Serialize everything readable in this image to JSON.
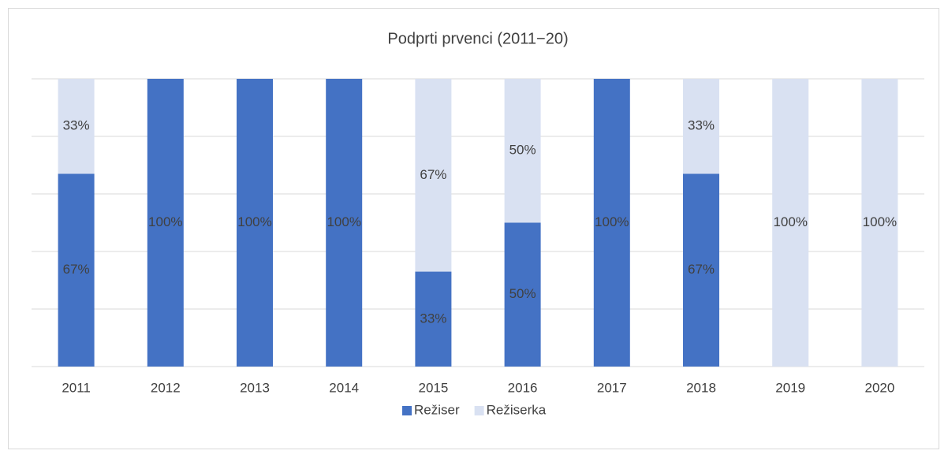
{
  "chart_data": {
    "type": "stacked_bar",
    "title": "Podprti prvenci (2011−20)",
    "categories": [
      "2011",
      "2012",
      "2013",
      "2014",
      "2015",
      "2016",
      "2017",
      "2018",
      "2019",
      "2020"
    ],
    "series": [
      {
        "name": "Režiser",
        "color": "#4472c4",
        "values": [
          67,
          100,
          100,
          100,
          33,
          50,
          100,
          67,
          0,
          0
        ],
        "value_labels": [
          "67%",
          "100%",
          "100%",
          "100%",
          "33%",
          "50%",
          "100%",
          "67%",
          null,
          null
        ]
      },
      {
        "name": "Režiserka",
        "color": "#d9e1f2",
        "values": [
          33,
          0,
          0,
          0,
          67,
          50,
          0,
          33,
          100,
          100
        ],
        "value_labels": [
          "33%",
          null,
          null,
          null,
          "67%",
          "50%",
          null,
          "33%",
          "100%",
          "100%"
        ]
      }
    ],
    "ylim": [
      0,
      100
    ],
    "yticks": [
      0,
      20,
      40,
      60,
      80,
      100
    ],
    "grid": true,
    "legend": "bottom"
  }
}
